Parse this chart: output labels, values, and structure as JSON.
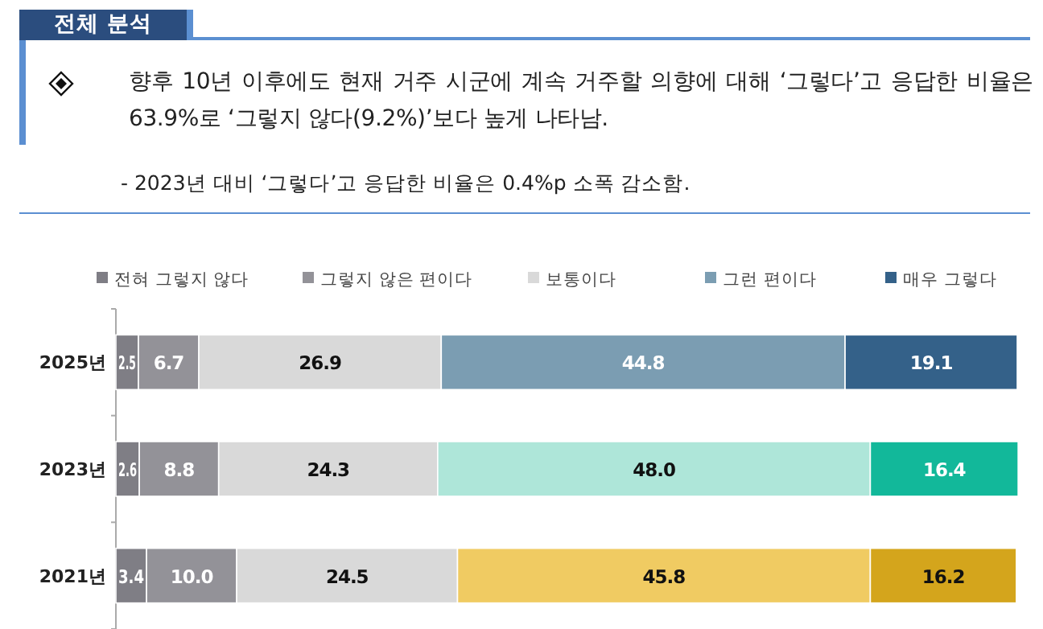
{
  "chart_data": {
    "type": "bar",
    "orientation": "horizontal",
    "stacked": true,
    "title": "전체 분석",
    "subtitle": "향후 10년 이후에도 현재 거주 시군에 계속 거주할 의향에 대해 ‘그렇다’고 응답한 비율은 63.9%로 ‘그렇지 않다(9.2%)’보다 높게 나타남.",
    "annotations": [
      "- 2023년 대비 ‘그렇다’고 응답한 비율은 0.4%p 소폭 감소함."
    ],
    "categories": [
      "2025년",
      "2023년",
      "2021년"
    ],
    "xlim": [
      0,
      100
    ],
    "legend": "top",
    "series": [
      {
        "name": "전혀 그렇지 않다",
        "color": "#7f7e85",
        "colors": [
          "#7f7e85",
          "#7f7e85",
          "#7f7e85"
        ],
        "values": [
          2.5,
          2.6,
          3.4
        ],
        "value_labels": [
          "2.5",
          "2.6",
          "3.4"
        ]
      },
      {
        "name": "그렇지 않은 편이다",
        "color": "#939298",
        "colors": [
          "#939298",
          "#939298",
          "#939298"
        ],
        "values": [
          6.7,
          8.8,
          10.0
        ],
        "value_labels": [
          "6.7",
          "8.8",
          "10.0"
        ]
      },
      {
        "name": "보통이다",
        "color": "#d9d9d9",
        "colors": [
          "#d9d9d9",
          "#d9d9d9",
          "#d9d9d9"
        ],
        "values": [
          26.9,
          24.3,
          24.5
        ],
        "value_labels": [
          "26.9",
          "24.3",
          "24.5"
        ]
      },
      {
        "name": "그런 편이다",
        "color": "#7b9db2",
        "colors": [
          "#7b9db2",
          "#aee6d9",
          "#f0cb62"
        ],
        "values": [
          44.8,
          48.0,
          45.8
        ],
        "value_labels": [
          "44.8",
          "48.0",
          "45.8"
        ]
      },
      {
        "name": "매우 그렇다",
        "color": "#346189",
        "colors": [
          "#346189",
          "#12b89a",
          "#d4a51c"
        ],
        "values": [
          19.1,
          16.4,
          16.2
        ],
        "value_labels": [
          "19.1",
          "16.4",
          "16.2"
        ]
      }
    ]
  }
}
